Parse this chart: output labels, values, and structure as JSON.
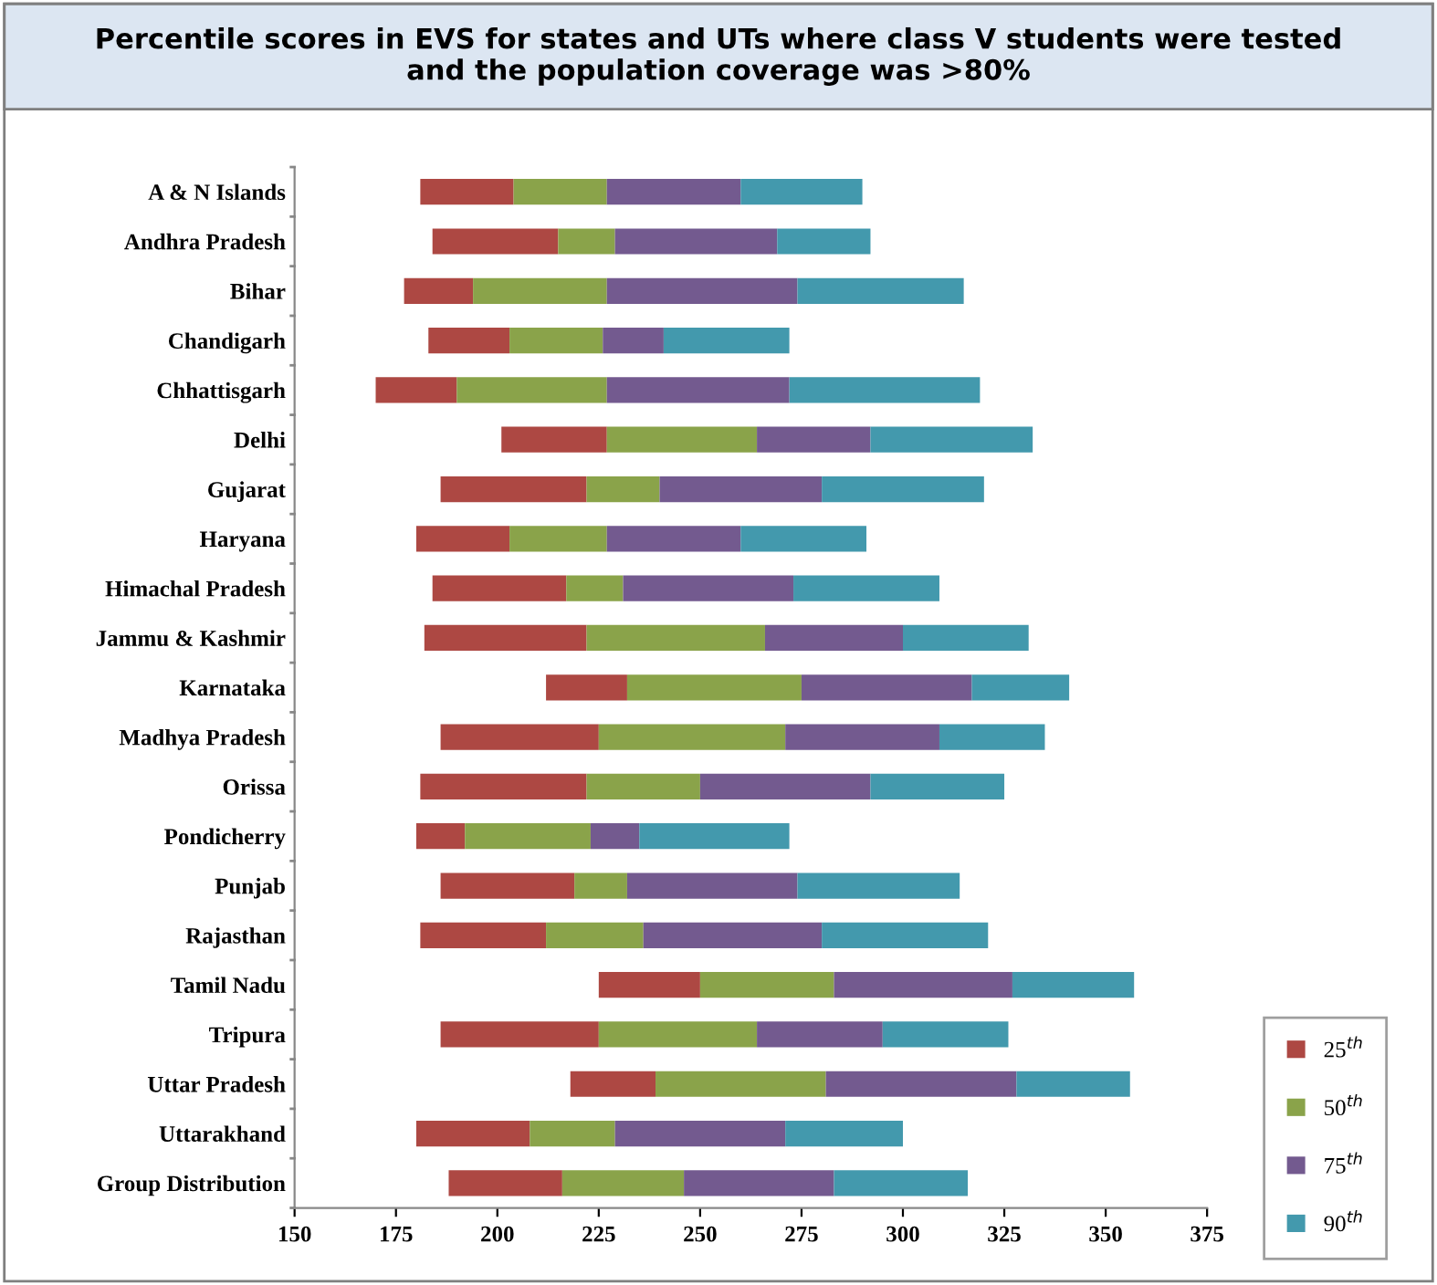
{
  "chart_data": {
    "type": "bar",
    "title": "Percentile scores in EVS for states and UTs where class V students were tested\nand the population coverage was >80%",
    "orientation": "horizontal",
    "categories": [
      "A & N Islands",
      "Andhra Pradesh",
      "Bihar",
      "Chandigarh",
      "Chhattisgarh",
      "Delhi",
      "Gujarat",
      "Haryana",
      "Himachal Pradesh",
      "Jammu & Kashmir",
      "Karnataka",
      "Madhya Pradesh",
      "Orissa",
      "Pondicherry",
      "Punjab",
      "Rajasthan",
      "Tamil Nadu",
      "Tripura",
      "Uttar Pradesh",
      "Uttarakhand",
      "Group Distribution"
    ],
    "series": [
      {
        "name": "25$^{th}$",
        "color": "#ad4843",
        "base": [
          181,
          184,
          177,
          183,
          170,
          201,
          186,
          180,
          184,
          182,
          212,
          186,
          181,
          180,
          186,
          181,
          225,
          186,
          218,
          180,
          188
        ],
        "values": [
          23,
          31,
          17,
          20,
          20,
          26,
          36,
          23,
          33,
          40,
          20,
          39,
          41,
          12,
          33,
          31,
          25,
          39,
          21,
          28,
          28
        ]
      },
      {
        "name": "50$^{th}$",
        "color": "#8aa34a",
        "base": [
          204,
          215,
          194,
          203,
          190,
          227,
          222,
          203,
          217,
          222,
          232,
          225,
          222,
          192,
          219,
          212,
          250,
          225,
          239,
          208,
          216
        ],
        "values": [
          23,
          14,
          33,
          23,
          37,
          37,
          18,
          24,
          14,
          44,
          43,
          46,
          28,
          31,
          13,
          24,
          33,
          39,
          42,
          21,
          30
        ]
      },
      {
        "name": "75$^{th}$",
        "color": "#735a8f",
        "base": [
          227,
          229,
          227,
          226,
          227,
          264,
          240,
          227,
          231,
          266,
          275,
          271,
          250,
          223,
          232,
          236,
          283,
          264,
          281,
          229,
          246
        ],
        "values": [
          33,
          40,
          47,
          15,
          45,
          28,
          40,
          33,
          42,
          34,
          42,
          38,
          42,
          12,
          42,
          44,
          44,
          31,
          47,
          42,
          37
        ]
      },
      {
        "name": "90$^{th}$",
        "color": "#4399ad",
        "base": [
          260,
          269,
          274,
          241,
          272,
          292,
          280,
          260,
          273,
          300,
          317,
          309,
          292,
          235,
          274,
          280,
          327,
          295,
          328,
          271,
          283
        ],
        "values": [
          30,
          23,
          41,
          31,
          47,
          40,
          40,
          31,
          36,
          31,
          24,
          26,
          33,
          37,
          40,
          41,
          30,
          31,
          28,
          29,
          33
        ]
      }
    ],
    "xlim": [
      150,
      375
    ],
    "xticks": [
      150,
      175,
      200,
      225,
      250,
      275,
      300,
      325,
      350,
      375
    ],
    "legend": "bottom right",
    "grid": false
  }
}
